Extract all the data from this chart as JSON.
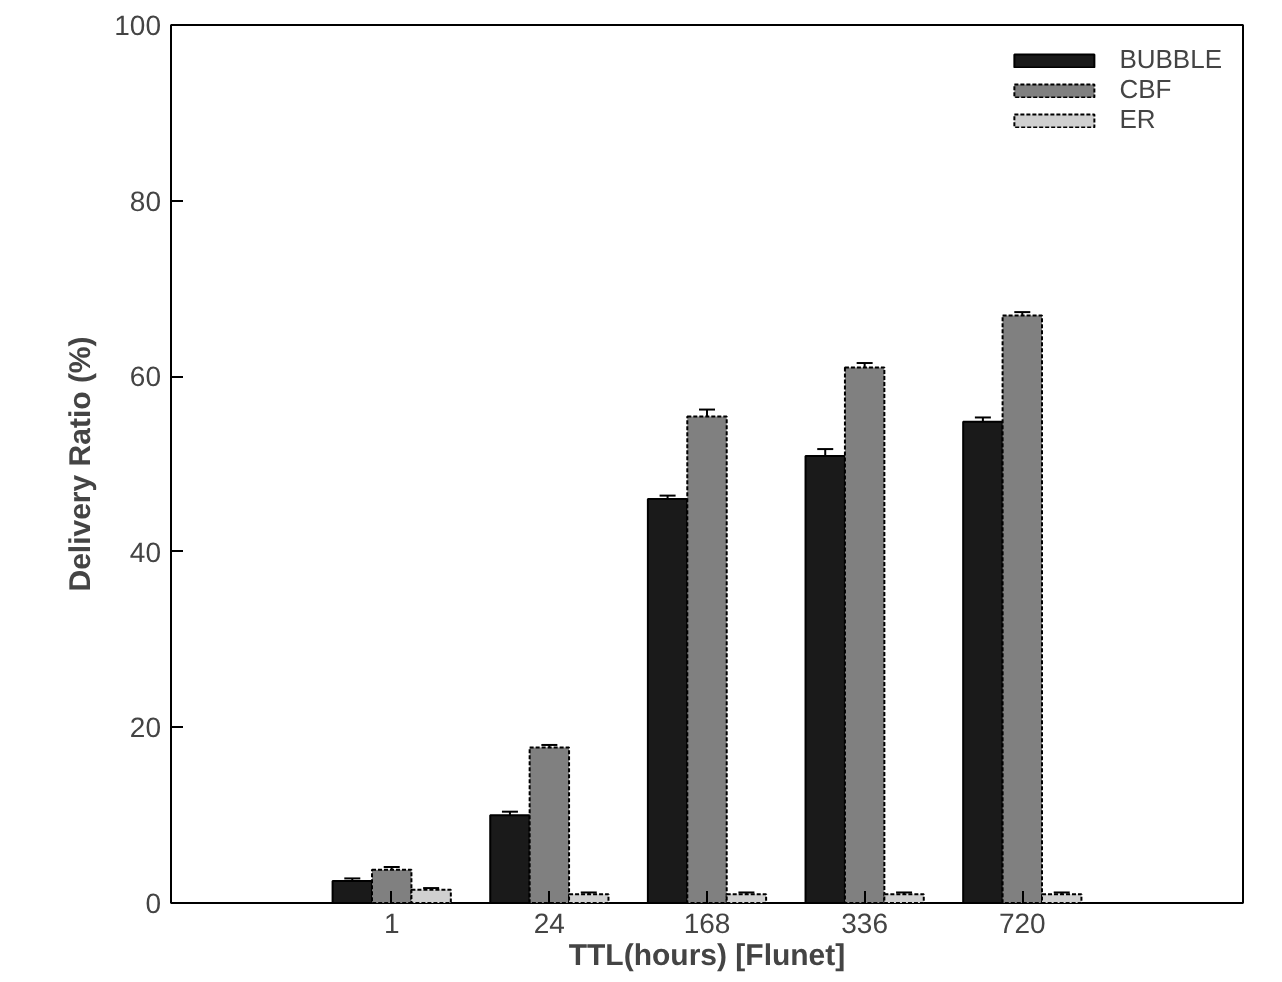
{
  "chart_data": {
    "type": "bar",
    "xlabel": "TTL(hours) [Flunet]",
    "ylabel": "Delivery Ratio (%)",
    "categories": [
      "1",
      "24",
      "168",
      "336",
      "720"
    ],
    "series": [
      {
        "name": "BUBBLE",
        "color": "#1a1a1a",
        "values": [
          2.5,
          10.0,
          46.0,
          50.9,
          54.8
        ],
        "errors": [
          0.3,
          0.4,
          0.4,
          0.8,
          0.5
        ]
      },
      {
        "name": "CBF",
        "color": "#808080",
        "values": [
          3.8,
          17.7,
          55.4,
          61.0,
          66.9
        ],
        "errors": [
          0.3,
          0.3,
          0.8,
          0.5,
          0.4
        ]
      },
      {
        "name": "ER",
        "color": "#d0d0d0",
        "values": [
          1.5,
          1.0,
          1.0,
          1.0,
          1.0
        ],
        "errors": [
          0.2,
          0.2,
          0.2,
          0.2,
          0.2
        ]
      }
    ],
    "ylim": [
      0,
      100
    ],
    "yticks": [
      0,
      20,
      40,
      60,
      80,
      100
    ],
    "grid": false,
    "legend": "top right"
  }
}
